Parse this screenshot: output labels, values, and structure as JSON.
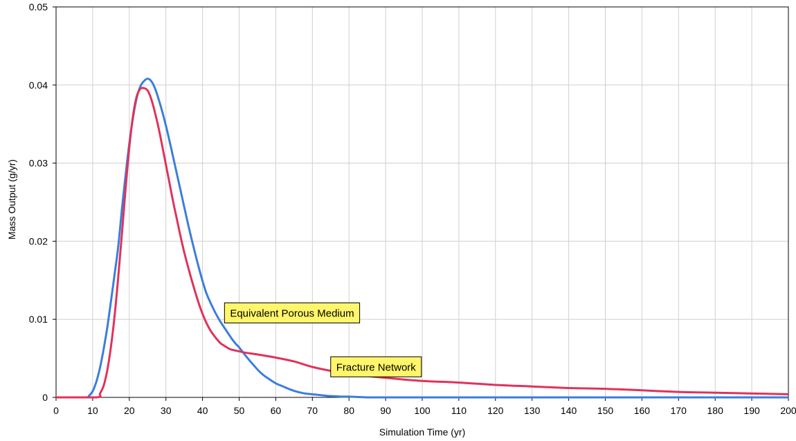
{
  "chart_data": {
    "type": "line",
    "title": "",
    "xlabel": "Simulation Time (yr)",
    "ylabel": "Mass Output (g/yr)",
    "xlim": [
      0,
      200
    ],
    "ylim": [
      0,
      0.05
    ],
    "xticks": [
      0,
      10,
      20,
      30,
      40,
      50,
      60,
      70,
      80,
      90,
      100,
      110,
      120,
      130,
      140,
      150,
      160,
      170,
      180,
      190,
      200
    ],
    "yticks": [
      0,
      0.01,
      0.02,
      0.03,
      0.04,
      0.05
    ],
    "ytick_labels": [
      "0",
      "0.01",
      "0.02",
      "0.03",
      "0.04",
      "0.05"
    ],
    "grid": true,
    "series": [
      {
        "name": "Equivalent Porous Medium",
        "color": "#3b7ddd",
        "x": [
          0,
          8,
          9,
          10,
          11,
          12,
          13,
          14,
          15,
          16,
          17,
          18,
          19,
          20,
          21,
          22,
          23,
          24,
          25,
          26,
          27,
          28,
          29,
          30,
          31,
          32,
          33,
          34,
          35,
          36,
          37,
          38,
          39,
          40,
          41,
          42,
          43,
          44,
          45,
          46,
          47,
          48,
          49,
          50,
          52,
          54,
          56,
          58,
          60,
          62,
          64,
          66,
          68,
          70,
          72,
          74,
          76,
          78,
          80,
          82,
          85,
          90,
          100,
          200
        ],
        "y": [
          0,
          0,
          0.0002,
          0.0008,
          0.002,
          0.0038,
          0.0062,
          0.009,
          0.0123,
          0.0158,
          0.0194,
          0.0242,
          0.0285,
          0.0325,
          0.0358,
          0.0383,
          0.0398,
          0.0405,
          0.0408,
          0.0405,
          0.0396,
          0.0382,
          0.0366,
          0.0348,
          0.0328,
          0.0307,
          0.0286,
          0.0265,
          0.0244,
          0.0223,
          0.0203,
          0.0184,
          0.0166,
          0.0149,
          0.0134,
          0.0123,
          0.0113,
          0.0104,
          0.0096,
          0.0089,
          0.0082,
          0.0075,
          0.0069,
          0.0064,
          0.0052,
          0.0041,
          0.0031,
          0.0024,
          0.0018,
          0.0014,
          0.001,
          0.0007,
          0.0005,
          0.0004,
          0.0003,
          0.0002,
          0.00015,
          0.0001,
          0.0001,
          5e-05,
          0,
          0,
          0,
          0
        ]
      },
      {
        "name": "Fracture Network",
        "color": "#e0325a",
        "x": [
          0,
          11,
          12,
          13,
          14,
          15,
          16,
          17,
          18,
          19,
          20,
          21,
          22,
          23,
          24,
          25,
          26,
          27,
          28,
          29,
          30,
          31,
          32,
          33,
          34,
          35,
          36,
          37,
          38,
          39,
          40,
          41,
          42,
          43,
          44,
          45,
          46,
          47,
          48,
          50,
          52,
          55,
          60,
          65,
          70,
          75,
          80,
          90,
          100,
          110,
          120,
          130,
          140,
          150,
          160,
          170,
          180,
          190,
          200
        ],
        "y": [
          0,
          0,
          0.0005,
          0.0015,
          0.0035,
          0.0065,
          0.0105,
          0.0155,
          0.021,
          0.0268,
          0.032,
          0.036,
          0.0385,
          0.0395,
          0.0396,
          0.0393,
          0.0382,
          0.0365,
          0.0345,
          0.0322,
          0.0298,
          0.0274,
          0.025,
          0.0228,
          0.0206,
          0.0186,
          0.0168,
          0.0151,
          0.0135,
          0.012,
          0.0107,
          0.0096,
          0.0087,
          0.008,
          0.0074,
          0.0069,
          0.0066,
          0.0063,
          0.0061,
          0.0059,
          0.0057,
          0.0055,
          0.0051,
          0.0046,
          0.0039,
          0.0034,
          0.003,
          0.0025,
          0.0021,
          0.0019,
          0.0016,
          0.0014,
          0.0012,
          0.0011,
          0.0009,
          0.0007,
          0.0006,
          0.0005,
          0.0004
        ]
      }
    ],
    "annotations": [
      {
        "text": "Equivalent Porous Medium",
        "x": 46,
        "y": 0.0121
      },
      {
        "text": "Fracture Network",
        "x": 75,
        "y": 0.0052
      }
    ]
  }
}
